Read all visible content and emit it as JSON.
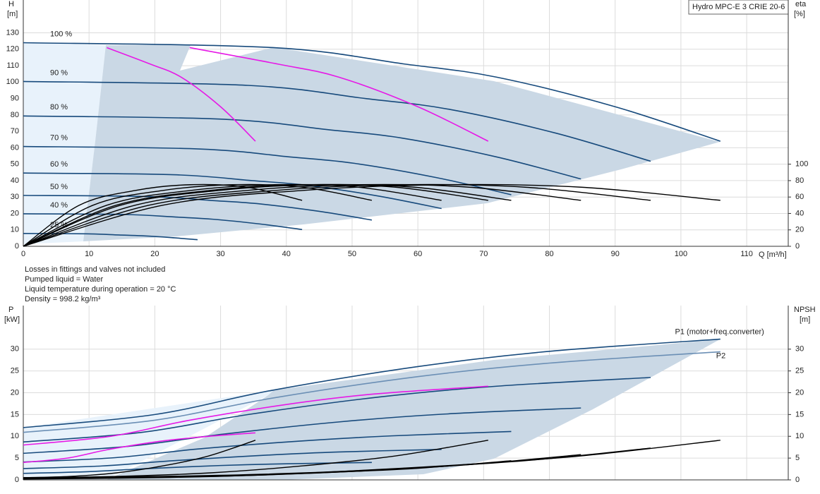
{
  "chart_data": [
    {
      "type": "line",
      "title": "Hydro MPC-E 3 CRIE 20-6",
      "x_label": "Q [m³/h]",
      "y_label": "H",
      "y_unit": "[m]",
      "y2_label": "eta",
      "y2_unit": "[%]",
      "xlim": [
        0,
        116
      ],
      "xticks": [
        0,
        10,
        20,
        30,
        40,
        50,
        60,
        70,
        80,
        90,
        100,
        110
      ],
      "ylim": [
        0,
        150
      ],
      "yticks": [
        0,
        10,
        20,
        30,
        40,
        50,
        60,
        70,
        80,
        90,
        100,
        110,
        120,
        130
      ],
      "y2lim": [
        0,
        300
      ],
      "y2ticks": [
        0,
        20,
        40,
        60,
        80,
        100
      ],
      "grid": true,
      "notes": [
        "Losses in fittings and valves not included",
        "Pumped liquid = Water",
        "Liquid temperature during operation = 20 °C",
        "Density = 998.2 kg/m³"
      ],
      "series": [
        {
          "label": "100 %",
          "color": "#174a7c",
          "x": [
            0,
            38,
            58,
            72,
            90,
            106
          ],
          "values": [
            124,
            121,
            111,
            103,
            85,
            64
          ]
        },
        {
          "label": "90 %",
          "color": "#174a7c",
          "x": [
            0,
            34.2,
            52.2,
            64.8,
            81,
            95.4
          ],
          "values": [
            100.4,
            98,
            89.9,
            83.4,
            68.9,
            51.8
          ]
        },
        {
          "label": "80 %",
          "color": "#174a7c",
          "x": [
            0,
            30.4,
            46.4,
            57.6,
            72,
            84.8
          ],
          "values": [
            79.4,
            77.4,
            71,
            65.9,
            54.4,
            41
          ]
        },
        {
          "label": "70 %",
          "color": "#174a7c",
          "x": [
            0,
            26.6,
            40.6,
            50.4,
            63,
            74.2
          ],
          "values": [
            60.8,
            59.3,
            54.4,
            50.5,
            41.7,
            31.4
          ]
        },
        {
          "label": "60 %",
          "color": "#174a7c",
          "x": [
            0,
            22.8,
            34.8,
            43.2,
            54,
            63.6
          ],
          "values": [
            44.6,
            43.6,
            40,
            37.1,
            30.6,
            23
          ]
        },
        {
          "label": "50 %",
          "color": "#174a7c",
          "x": [
            0,
            19,
            29,
            36,
            45,
            53
          ],
          "values": [
            31,
            30.3,
            27.8,
            25.8,
            21.3,
            16
          ]
        },
        {
          "label": "40 %",
          "color": "#174a7c",
          "x": [
            0,
            15.2,
            23.2,
            28.8,
            36,
            42.4
          ],
          "values": [
            19.8,
            19.4,
            17.8,
            16.5,
            13.6,
            10.2
          ]
        },
        {
          "label": "25 %",
          "color": "#174a7c",
          "x": [
            0,
            9.5,
            14.5,
            18,
            22.5,
            26.5
          ],
          "values": [
            7.8,
            7.6,
            6.9,
            6.4,
            5.3,
            4
          ]
        },
        {
          "color": "#e619e6",
          "x": [
            12.7,
            19.3,
            24,
            30,
            35.3
          ],
          "values": [
            121,
            111,
            103,
            85,
            64
          ]
        },
        {
          "color": "#e619e6",
          "x": [
            25.3,
            38.7,
            48,
            60,
            70.7
          ],
          "values": [
            121,
            111,
            103,
            85,
            64
          ]
        },
        {
          "color": "#000000",
          "axis": "y2",
          "x": [
            0,
            21.2,
            42.4,
            63.6,
            84.8,
            106
          ],
          "values": [
            0,
            50,
            68,
            75,
            72,
            56
          ]
        },
        {
          "color": "#000000",
          "axis": "y2",
          "x": [
            0,
            19.1,
            38.2,
            57.2,
            76.3,
            95.4
          ],
          "values": [
            0,
            50,
            68,
            75,
            72,
            56
          ]
        },
        {
          "color": "#000000",
          "axis": "y2",
          "x": [
            0,
            17,
            33.9,
            50.9,
            67.8,
            84.8
          ],
          "values": [
            0,
            50,
            68,
            75,
            72,
            56
          ]
        },
        {
          "color": "#000000",
          "axis": "y2",
          "x": [
            0,
            14.8,
            29.7,
            44.5,
            59.4,
            74.2
          ],
          "values": [
            0,
            50,
            68,
            75,
            72,
            56
          ]
        },
        {
          "color": "#000000",
          "axis": "y2",
          "x": [
            0,
            14.1,
            28.3,
            42.4,
            56.6,
            70.7
          ],
          "values": [
            0,
            50,
            68,
            75,
            72,
            56
          ]
        },
        {
          "color": "#000000",
          "axis": "y2",
          "x": [
            0,
            12.7,
            25.4,
            38.2,
            50.9,
            63.6
          ],
          "values": [
            0,
            50,
            68,
            75,
            72,
            56
          ]
        },
        {
          "color": "#000000",
          "axis": "y2",
          "x": [
            0,
            10.6,
            21.2,
            31.8,
            42.4,
            53
          ],
          "values": [
            0,
            50,
            68,
            75,
            72,
            56
          ]
        },
        {
          "color": "#000000",
          "axis": "y2",
          "x": [
            0,
            8.5,
            17,
            25.4,
            33.9,
            42.4
          ],
          "values": [
            0,
            50,
            68,
            75,
            72,
            56
          ]
        }
      ]
    },
    {
      "type": "line",
      "y_label": "P",
      "y_unit": "[kW]",
      "y2_label": "NPSH",
      "y2_unit": "[m]",
      "xlim": [
        0,
        116
      ],
      "xticks": [
        0,
        10,
        20,
        30,
        40,
        50,
        60,
        70,
        80,
        90,
        100,
        110
      ],
      "ylim": [
        0,
        40
      ],
      "yticks": [
        0,
        5,
        10,
        15,
        20,
        25,
        30
      ],
      "y2lim": [
        0,
        40
      ],
      "y2ticks": [
        0,
        5,
        10,
        15,
        20,
        25,
        30
      ],
      "grid": true,
      "series": [
        {
          "name": "P1 (motor+freq.converter)",
          "color": "#174a7c",
          "x": [
            0,
            20,
            38,
            60,
            80,
            106
          ],
          "values": [
            12,
            15,
            20.6,
            26,
            29.5,
            32.3
          ]
        },
        {
          "name": "P2",
          "color": "#6b8fb5",
          "x": [
            0,
            20,
            38,
            60,
            80,
            106
          ],
          "values": [
            10.9,
            13.7,
            18.8,
            23.7,
            26.8,
            29.4
          ]
        },
        {
          "color": "#174a7c",
          "x": [
            0,
            18,
            34.2,
            54,
            72,
            95.4
          ],
          "values": [
            8.7,
            10.9,
            15,
            19,
            21.5,
            23.5
          ]
        },
        {
          "color": "#174a7c",
          "x": [
            0,
            16,
            30.4,
            48,
            64,
            84.8
          ],
          "values": [
            6.1,
            7.7,
            10.5,
            13.3,
            15.1,
            16.5
          ]
        },
        {
          "color": "#174a7c",
          "x": [
            0,
            14,
            26.6,
            42,
            56,
            74.2
          ],
          "values": [
            4.1,
            5.1,
            7.1,
            8.9,
            10.1,
            11.1
          ]
        },
        {
          "color": "#174a7c",
          "x": [
            0,
            12,
            22.8,
            36,
            48,
            63.6
          ],
          "values": [
            2.6,
            3.2,
            4.4,
            5.6,
            6.4,
            7
          ]
        },
        {
          "color": "#174a7c",
          "x": [
            0,
            10,
            19,
            30,
            40,
            53
          ],
          "values": [
            1.5,
            1.9,
            2.6,
            3.3,
            3.7,
            4
          ]
        },
        {
          "color": "#e619e6",
          "x": [
            0,
            6.7,
            12.7,
            20,
            26.7,
            35.3
          ],
          "values": [
            4,
            5,
            6.9,
            8.7,
            9.8,
            10.8
          ]
        },
        {
          "color": "#e619e6",
          "x": [
            0,
            13.3,
            25.3,
            40,
            53.3,
            70.7
          ],
          "values": [
            8,
            10,
            13.7,
            17.3,
            19.7,
            21.5
          ]
        },
        {
          "color": "#000000",
          "axis": "y2",
          "x": [
            0,
            21.2,
            42.4,
            63.6,
            84.8,
            106
          ],
          "values": [
            0.5,
            0.8,
            1.6,
            3.2,
            5.5,
            9.1
          ]
        },
        {
          "color": "#000000",
          "axis": "y2",
          "x": [
            0,
            19.1,
            38.2,
            57.2,
            76.3,
            95.4
          ],
          "values": [
            0.4,
            0.6,
            1.3,
            2.6,
            4.4,
            7.3
          ]
        },
        {
          "color": "#000000",
          "axis": "y2",
          "x": [
            0,
            17,
            33.9,
            50.9,
            67.8,
            84.8
          ],
          "values": [
            0.3,
            0.5,
            1,
            2,
            3.5,
            5.8
          ]
        },
        {
          "color": "#000000",
          "axis": "y2",
          "x": [
            0,
            14.8,
            29.7,
            44.5,
            59.4,
            74.2
          ],
          "values": [
            0.2,
            0.4,
            0.8,
            1.6,
            2.6,
            4.4
          ]
        },
        {
          "color": "#000000",
          "axis": "y2",
          "x": [
            0,
            14.1,
            28.3,
            42.4,
            56.6,
            70.7
          ],
          "values": [
            0.5,
            0.8,
            1.6,
            3.2,
            5.5,
            9.1
          ]
        },
        {
          "color": "#000000",
          "axis": "y2",
          "x": [
            0,
            7.1,
            14.1,
            21.2,
            28.2,
            35.3
          ],
          "values": [
            0.5,
            0.8,
            1.6,
            3.2,
            5.5,
            9.1
          ]
        }
      ]
    }
  ]
}
